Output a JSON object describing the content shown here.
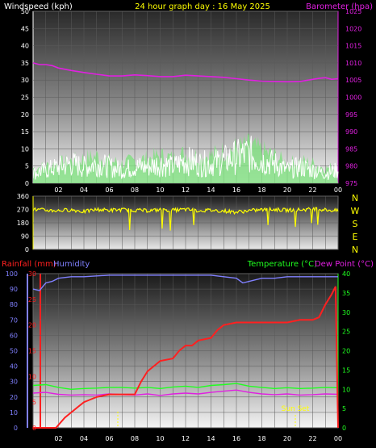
{
  "header": {
    "wind_label": "Windspeed (kph)",
    "title": "24 hour graph day : 16 May 2025",
    "baro_label": "Barometer (hpa)"
  },
  "lower_header": {
    "rain_label": "Rainfall (mm)",
    "humidity_label": "Humidity",
    "temp_label": "Temperature (°C)",
    "dew_label": "Dew Point (°C)"
  },
  "compass": [
    "N",
    "W",
    "S",
    "E",
    "N"
  ],
  "sunset_label": "Sun Set",
  "colors": {
    "wind": "#ffffff",
    "gust_fill": "#7fe07f",
    "barometer": "#e020e0",
    "direction": "#ffff00",
    "rain": "#ff2020",
    "humidity": "#8080ff",
    "temperature": "#20ff20",
    "dewpoint": "#e020e0",
    "axis_yellow": "#ffff00"
  },
  "chart_data": [
    {
      "type": "line",
      "title": "24 hour graph day : 16 May 2025",
      "x_ticks": [
        "02",
        "04",
        "06",
        "08",
        "10",
        "12",
        "14",
        "16",
        "18",
        "20",
        "22",
        "00"
      ],
      "ylabel": "Windspeed (kph)",
      "ylim": [
        0,
        50
      ],
      "y_ticks": [
        0,
        5,
        10,
        15,
        20,
        25,
        30,
        35,
        40,
        45,
        50
      ],
      "y2label": "Barometer (hpa)",
      "y2lim": [
        975,
        1025
      ],
      "y2_ticks": [
        975,
        980,
        985,
        990,
        995,
        1000,
        1005,
        1010,
        1015,
        1020,
        1025
      ],
      "series": [
        {
          "name": "Barometer (hpa)",
          "x": [
            0,
            0.5,
            1,
            1.5,
            2,
            3,
            4,
            5,
            6,
            7,
            8,
            9,
            10,
            11,
            12,
            13,
            14,
            15,
            16,
            17,
            18,
            19,
            20,
            21,
            22,
            22.5,
            23,
            23.5,
            24
          ],
          "values": [
            1010,
            1009.5,
            1009.5,
            1009.2,
            1008.5,
            1007.8,
            1007.2,
            1006.7,
            1006.2,
            1006.2,
            1006.5,
            1006.3,
            1006,
            1006,
            1006.4,
            1006.2,
            1006,
            1005.8,
            1005.4,
            1005,
            1004.7,
            1004.6,
            1004.5,
            1004.6,
            1005.2,
            1005.5,
            1005.7,
            1005.2,
            1005.4
          ]
        },
        {
          "name": "Windspeed (kph)",
          "x": [
            0,
            1,
            2,
            3,
            4,
            5,
            6,
            7,
            8,
            9,
            10,
            11,
            12,
            13,
            14,
            15,
            16,
            17,
            18,
            19,
            20,
            21,
            22,
            23,
            24
          ],
          "values": [
            3,
            4,
            5,
            6,
            5,
            6,
            5,
            4,
            5,
            5,
            6,
            5,
            7,
            6,
            6,
            7,
            8,
            9,
            7,
            6,
            4,
            5,
            4,
            3,
            4
          ]
        },
        {
          "name": "Wind Gust (kph)",
          "x": [
            0,
            1,
            2,
            3,
            4,
            5,
            6,
            7,
            8,
            9,
            10,
            11,
            12,
            13,
            14,
            15,
            16,
            17,
            18,
            19,
            20,
            21,
            22,
            23,
            24
          ],
          "values": [
            6,
            7,
            8,
            9,
            10,
            11,
            9,
            8,
            9,
            10,
            11,
            10,
            12,
            11,
            11,
            13,
            14,
            15,
            13,
            11,
            8,
            9,
            8,
            6,
            7
          ]
        }
      ]
    },
    {
      "type": "line",
      "y_ticks": [
        0,
        90,
        180,
        270,
        360
      ],
      "ylim": [
        0,
        360
      ],
      "series": [
        {
          "name": "Wind Direction",
          "x": [
            0,
            1,
            2,
            3,
            4,
            5,
            6,
            7,
            8,
            9,
            10,
            11,
            12,
            13,
            14,
            15,
            16,
            17,
            18,
            19,
            20,
            21,
            22,
            23,
            24
          ],
          "values": [
            270,
            265,
            262,
            268,
            255,
            270,
            265,
            268,
            265,
            262,
            268,
            265,
            270,
            262,
            265,
            260,
            252,
            262,
            268,
            270,
            265,
            268,
            272,
            268,
            260
          ]
        }
      ]
    },
    {
      "type": "line",
      "x_ticks": [
        "02",
        "04",
        "06",
        "08",
        "10",
        "12",
        "14",
        "16",
        "18",
        "20",
        "22",
        "00"
      ],
      "ylabel": "Rainfall (mm)",
      "ylim": [
        0,
        30
      ],
      "y_ticks": [
        0,
        5,
        10,
        15,
        20,
        25,
        30
      ],
      "y3label": "Humidity",
      "y3lim": [
        0,
        100
      ],
      "y3_ticks": [
        0,
        10,
        20,
        30,
        40,
        50,
        60,
        70,
        80,
        90,
        100
      ],
      "y2label": "Temperature (°C)",
      "y2lim": [
        0,
        40
      ],
      "y2_ticks": [
        0,
        5,
        10,
        15,
        20,
        25,
        30,
        35,
        40
      ],
      "annotations": [
        "Sun Set"
      ],
      "series": [
        {
          "name": "Rainfall (mm)",
          "x": [
            0,
            1.8,
            2.5,
            3,
            3.5,
            4,
            4.5,
            5,
            6,
            7,
            7.5,
            8,
            8.5,
            9,
            9.5,
            10,
            11,
            11.5,
            12,
            12.5,
            13,
            14,
            14.5,
            15,
            16,
            17,
            18,
            19,
            20,
            21,
            21.5,
            22,
            22.5,
            23,
            23.5,
            23.8,
            24
          ],
          "values": [
            0,
            0,
            2,
            3,
            4,
            5,
            5.5,
            6,
            6.5,
            6.5,
            6.5,
            6.5,
            9,
            11,
            12,
            13,
            13.5,
            15,
            16,
            16,
            17,
            17.5,
            19,
            20,
            20.5,
            20.5,
            20.5,
            20.5,
            20.5,
            21,
            21,
            21,
            21.5,
            24,
            26,
            27.5,
            0
          ]
        },
        {
          "name": "Humidity",
          "x": [
            0,
            0.5,
            1,
            1.5,
            2,
            3,
            4,
            6,
            8,
            10,
            12,
            14,
            15,
            16,
            16.5,
            17,
            18,
            19,
            20,
            21,
            22,
            23,
            24
          ],
          "values": [
            90,
            89,
            94,
            95,
            97,
            98,
            98,
            99,
            99,
            99,
            99,
            99,
            98,
            97,
            94,
            95,
            97,
            97,
            98,
            98,
            98,
            98,
            98
          ]
        },
        {
          "name": "Temperature (°C)",
          "x": [
            0,
            1,
            2,
            3,
            4,
            5,
            6,
            7,
            8,
            9,
            10,
            11,
            12,
            13,
            14,
            15,
            16,
            17,
            18,
            19,
            20,
            21,
            22,
            23,
            24
          ],
          "values": [
            11,
            11.2,
            10.5,
            10,
            10.2,
            10.3,
            10.5,
            10.5,
            10.3,
            10.5,
            10.2,
            10.6,
            10.8,
            10.5,
            11,
            11.2,
            11.5,
            10.8,
            10.5,
            10.2,
            10.4,
            10.2,
            10.3,
            10.5,
            10.4
          ]
        },
        {
          "name": "Dew Point (°C)",
          "x": [
            0,
            1,
            2,
            3,
            4,
            5,
            6,
            7,
            8,
            9,
            10,
            11,
            12,
            13,
            14,
            15,
            16,
            17,
            18,
            19,
            20,
            21,
            22,
            23,
            24
          ],
          "values": [
            9,
            9.2,
            8.7,
            8.5,
            8.6,
            8.5,
            8.8,
            8.6,
            8.5,
            8.8,
            8.4,
            8.8,
            9,
            8.8,
            9.2,
            9.5,
            9.8,
            9.2,
            8.8,
            8.6,
            8.8,
            8.5,
            8.6,
            8.8,
            8.7
          ]
        }
      ]
    }
  ]
}
